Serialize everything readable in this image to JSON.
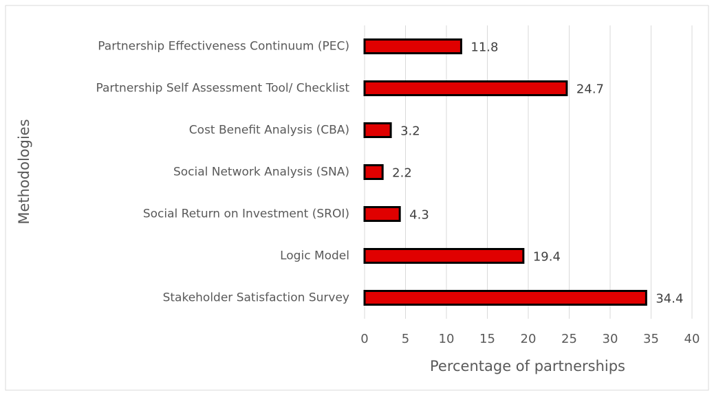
{
  "chart_data": {
    "type": "bar",
    "orientation": "horizontal",
    "categories": [
      "Partnership Effectiveness Continuum (PEC)",
      "Partnership Self Assessment Tool/ Checklist",
      "Cost Benefit Analysis (CBA)",
      "Social Network Analysis (SNA)",
      "Social Return on Investment (SROI)",
      "Logic Model",
      "Stakeholder Satisfaction Survey"
    ],
    "values": [
      11.8,
      24.7,
      3.2,
      2.2,
      4.3,
      19.4,
      34.4
    ],
    "color": "#e00000",
    "x_label": "Percentage of partnerships",
    "y_label": "Methodologies",
    "xlim": [
      0,
      40
    ],
    "xticks": [
      0,
      5,
      10,
      15,
      20,
      25,
      30,
      35,
      40
    ],
    "grid": true
  }
}
